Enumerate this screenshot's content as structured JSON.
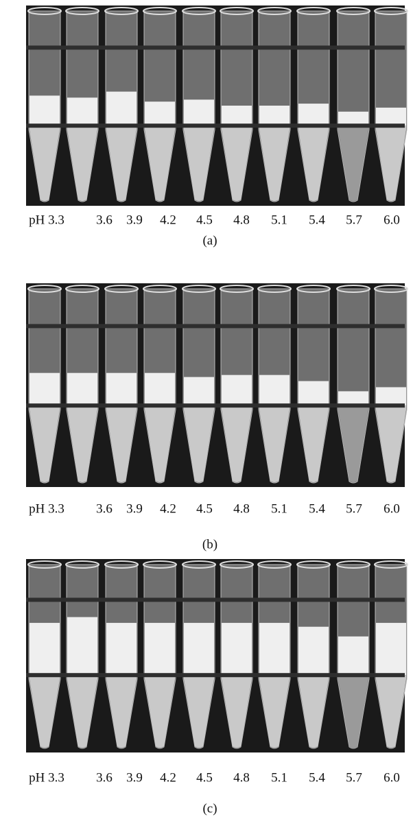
{
  "panels": [
    {
      "labels": [
        "pH 3.3",
        "3.6",
        "3.9",
        "4.2",
        "4.5",
        "4.8",
        "5.1",
        "5.4",
        "5.7",
        "6.0"
      ],
      "caption": "(a)"
    },
    {
      "labels": [
        "pH 3.3",
        "3.6",
        "3.9",
        "4.2",
        "4.5",
        "4.8",
        "5.1",
        "5.4",
        "5.7",
        "6.0"
      ],
      "caption": "(b)"
    },
    {
      "labels": [
        "pH 3.3",
        "3.6",
        "3.9",
        "4.2",
        "4.5",
        "4.8",
        "5.1",
        "5.4",
        "5.7",
        "6.0"
      ],
      "caption": "(c)"
    }
  ]
}
